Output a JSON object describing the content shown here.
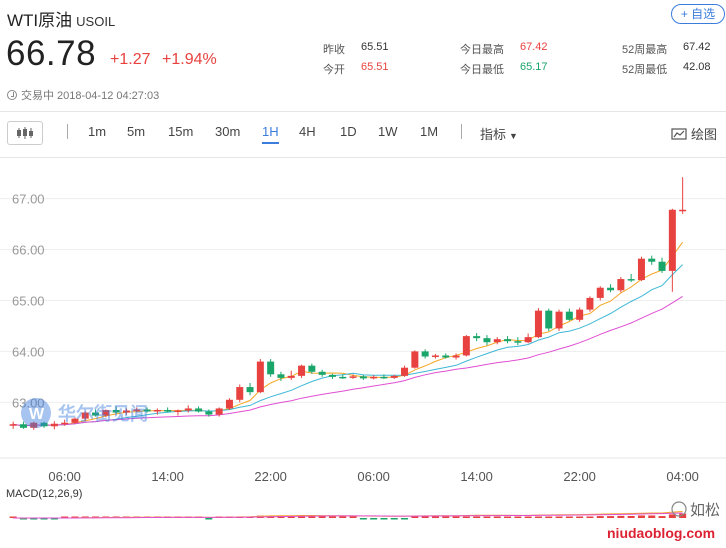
{
  "header": {
    "title": "WTI原油",
    "code": "USOIL",
    "add_label": "+ 自选"
  },
  "quote": {
    "price": "66.78",
    "change": "+1.27",
    "change_pct": "+1.94%"
  },
  "stats": {
    "prev_close_label": "昨收",
    "prev_close": "65.51",
    "open_label": "今开",
    "open": "65.51",
    "day_high_label": "今日最高",
    "day_high": "67.42",
    "day_low_label": "今日最低",
    "day_low": "65.17",
    "w52_high_label": "52周最高",
    "w52_high": "67.42",
    "w52_low_label": "52周最低",
    "w52_low": "42.08"
  },
  "status": {
    "text": "交易中 2018-04-12 04:27:03"
  },
  "toolbar": {
    "periods": [
      "1m",
      "5m",
      "15m",
      "30m",
      "1H",
      "4H",
      "1D",
      "1W",
      "1M"
    ],
    "active_period": "1H",
    "indicator_label": "指标",
    "draw_label": "绘图"
  },
  "watermark": {
    "brand": "华尔街见闻",
    "site": "niudaoblog.com",
    "wechat": "如松"
  },
  "colors": {
    "up": "#e7423f",
    "down": "#1aa56a",
    "accent": "#3b7ddd",
    "ma5": "#f5a623",
    "ma10": "#3fb8d6",
    "ma20": "#e04fd2"
  },
  "chart_data": {
    "type": "candlestick",
    "y_ticks": [
      "67.00",
      "66.00",
      "65.00",
      "64.00",
      "63.00"
    ],
    "ylim": [
      62.3,
      67.6
    ],
    "x_tick_labels": [
      "06:00",
      "14:00",
      "22:00",
      "06:00",
      "14:00",
      "22:00",
      "04:00"
    ],
    "x_tick_index": [
      5,
      15,
      25,
      35,
      45,
      55,
      65
    ],
    "candles": [
      [
        62.55,
        62.62,
        62.48,
        62.57
      ],
      [
        62.57,
        62.62,
        62.48,
        62.5
      ],
      [
        62.5,
        62.62,
        62.46,
        62.6
      ],
      [
        62.6,
        62.62,
        62.5,
        62.53
      ],
      [
        62.53,
        62.63,
        62.47,
        62.58
      ],
      [
        62.58,
        62.66,
        62.54,
        62.6
      ],
      [
        62.6,
        62.7,
        62.58,
        62.68
      ],
      [
        62.68,
        62.82,
        62.64,
        62.8
      ],
      [
        62.8,
        62.86,
        62.72,
        62.74
      ],
      [
        62.74,
        62.86,
        62.71,
        62.85
      ],
      [
        62.85,
        62.92,
        62.78,
        62.8
      ],
      [
        62.8,
        62.88,
        62.76,
        62.84
      ],
      [
        62.84,
        62.9,
        62.8,
        62.86
      ],
      [
        62.86,
        62.9,
        62.8,
        62.82
      ],
      [
        62.82,
        62.88,
        62.76,
        62.85
      ],
      [
        62.85,
        62.9,
        62.8,
        62.82
      ],
      [
        62.82,
        62.86,
        62.74,
        62.84
      ],
      [
        62.84,
        62.94,
        62.8,
        62.88
      ],
      [
        62.88,
        62.92,
        62.8,
        62.82
      ],
      [
        62.82,
        62.86,
        62.72,
        62.76
      ],
      [
        62.76,
        62.9,
        62.72,
        62.88
      ],
      [
        62.88,
        63.08,
        62.85,
        63.05
      ],
      [
        63.05,
        63.35,
        63.0,
        63.3
      ],
      [
        63.3,
        63.38,
        63.14,
        63.2
      ],
      [
        63.2,
        63.85,
        63.18,
        63.8
      ],
      [
        63.8,
        63.85,
        63.5,
        63.55
      ],
      [
        63.55,
        63.6,
        63.42,
        63.48
      ],
      [
        63.48,
        63.62,
        63.44,
        63.52
      ],
      [
        63.52,
        63.74,
        63.48,
        63.72
      ],
      [
        63.72,
        63.76,
        63.56,
        63.6
      ],
      [
        63.6,
        63.64,
        63.5,
        63.54
      ],
      [
        63.54,
        63.56,
        63.46,
        63.5
      ],
      [
        63.5,
        63.55,
        63.46,
        63.49
      ],
      [
        63.49,
        63.55,
        63.46,
        63.51
      ],
      [
        63.51,
        63.54,
        63.44,
        63.47
      ],
      [
        63.47,
        63.53,
        63.45,
        63.5
      ],
      [
        63.5,
        63.55,
        63.46,
        63.48
      ],
      [
        63.48,
        63.54,
        63.46,
        63.52
      ],
      [
        63.52,
        63.72,
        63.5,
        63.68
      ],
      [
        63.68,
        64.02,
        63.66,
        64.0
      ],
      [
        64.0,
        64.04,
        63.86,
        63.9
      ],
      [
        63.9,
        63.95,
        63.86,
        63.92
      ],
      [
        63.92,
        63.96,
        63.86,
        63.88
      ],
      [
        63.88,
        63.96,
        63.84,
        63.92
      ],
      [
        63.92,
        64.32,
        63.9,
        64.3
      ],
      [
        64.3,
        64.36,
        64.2,
        64.26
      ],
      [
        64.26,
        64.32,
        64.12,
        64.18
      ],
      [
        64.18,
        64.28,
        64.14,
        64.24
      ],
      [
        64.24,
        64.3,
        64.16,
        64.2
      ],
      [
        64.2,
        64.28,
        64.12,
        64.18
      ],
      [
        64.18,
        64.35,
        64.16,
        64.28
      ],
      [
        64.28,
        64.85,
        64.26,
        64.8
      ],
      [
        64.8,
        64.84,
        64.4,
        64.45
      ],
      [
        64.45,
        64.82,
        64.4,
        64.78
      ],
      [
        64.78,
        64.84,
        64.6,
        64.62
      ],
      [
        64.62,
        64.86,
        64.58,
        64.82
      ],
      [
        64.82,
        65.08,
        64.78,
        65.05
      ],
      [
        65.05,
        65.28,
        65.0,
        65.25
      ],
      [
        65.25,
        65.32,
        65.16,
        65.2
      ],
      [
        65.2,
        65.46,
        65.16,
        65.42
      ],
      [
        65.42,
        65.52,
        65.36,
        65.4
      ],
      [
        65.4,
        65.86,
        65.38,
        65.82
      ],
      [
        65.82,
        65.88,
        65.7,
        65.76
      ],
      [
        65.76,
        65.84,
        65.54,
        65.58
      ],
      [
        65.58,
        66.8,
        65.17,
        66.78
      ],
      [
        66.78,
        67.42,
        66.7,
        66.78
      ]
    ]
  }
}
